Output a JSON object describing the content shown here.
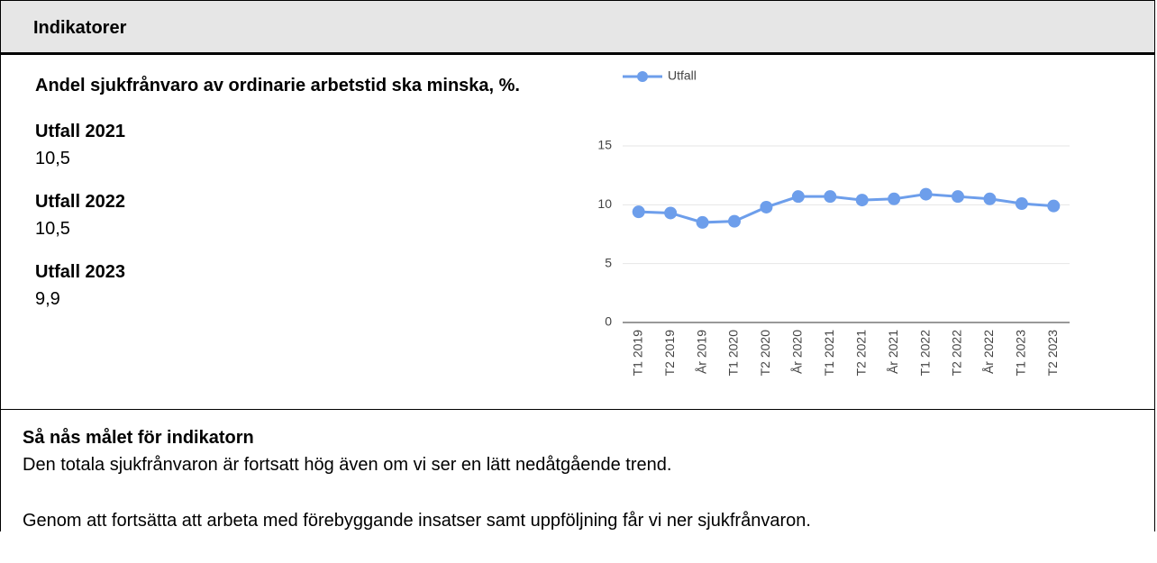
{
  "header": {
    "title": "Indikatorer"
  },
  "indicator": {
    "title": "Andel sjukfrånvaro av ordinarie arbetstid ska minska, %.",
    "results": [
      {
        "label": "Utfall 2021",
        "value": "10,5"
      },
      {
        "label": "Utfall 2022",
        "value": "10,5"
      },
      {
        "label": "Utfall 2023",
        "value": "9,9"
      }
    ]
  },
  "chart_data": {
    "type": "line",
    "categories": [
      "T1 2019",
      "T2 2019",
      "År 2019",
      "T1 2020",
      "T2 2020",
      "År 2020",
      "T1 2021",
      "T2 2021",
      "År 2021",
      "T1 2022",
      "T2 2022",
      "År 2022",
      "T1 2023",
      "T2 2023"
    ],
    "series": [
      {
        "name": "Utfall",
        "color": "#6d9eeb",
        "values": [
          9.4,
          9.3,
          8.5,
          8.6,
          9.8,
          10.7,
          10.7,
          10.4,
          10.5,
          10.9,
          10.7,
          10.5,
          10.1,
          9.9
        ]
      }
    ],
    "ylim": [
      0,
      15
    ],
    "yticks": [
      0,
      5,
      10,
      15
    ],
    "grid": true,
    "legend": "top"
  },
  "footer": {
    "heading": "Så nås målet för indikatorn",
    "paragraphs": [
      "Den totala sjukfrånvaron är fortsatt hög även om vi ser en lätt nedåtgående trend.",
      "Genom att fortsätta att arbeta med förebyggande insatser samt uppföljning får vi ner sjukfrånvaron."
    ]
  }
}
